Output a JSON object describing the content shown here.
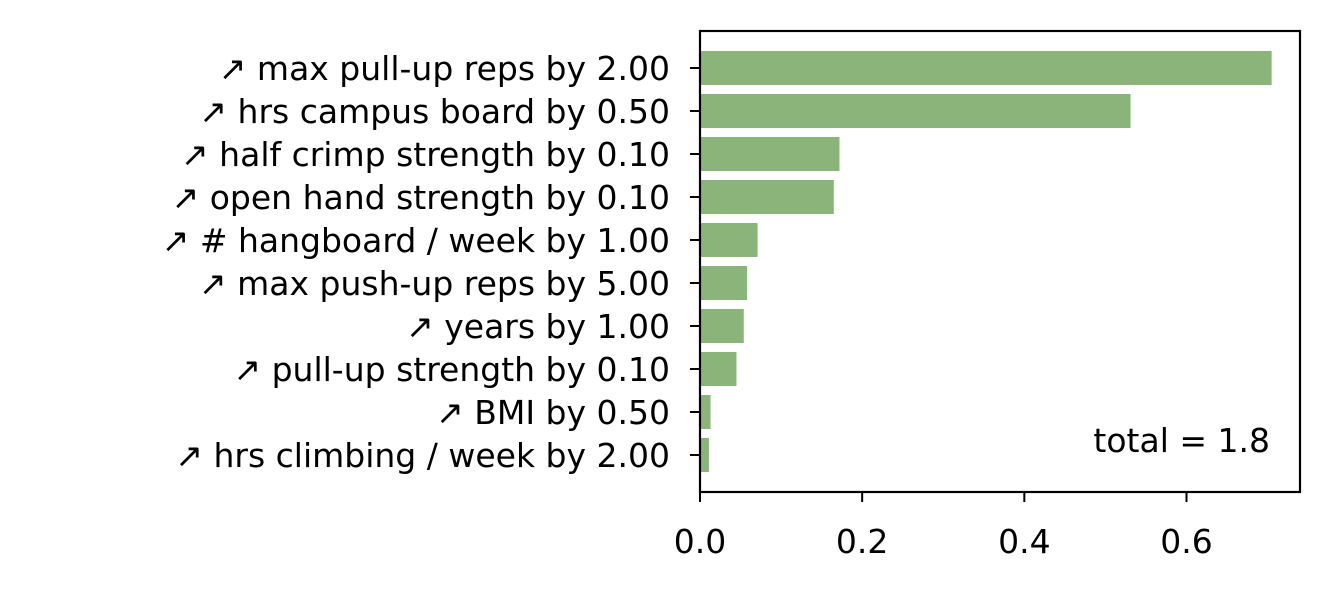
{
  "chart_data": {
    "type": "bar",
    "orientation": "horizontal",
    "categories": [
      "↗ max pull-up reps by 2.00",
      "↗ hrs campus board by 0.50",
      "↗ half crimp strength by 0.10",
      "↗ open hand strength by 0.10",
      "↗ # hangboard / week by 1.00",
      "↗ max push-up reps by 5.00",
      "↗ years by 1.00",
      "↗ pull-up strength by 0.10",
      "↗ BMI by 0.50",
      "↗ hrs climbing / week by 2.00"
    ],
    "values": [
      0.705,
      0.531,
      0.172,
      0.165,
      0.071,
      0.058,
      0.054,
      0.045,
      0.013,
      0.011
    ],
    "xlim": [
      0,
      0.74
    ],
    "xticks": [
      0.0,
      0.2,
      0.4,
      0.6
    ],
    "xtick_labels": [
      "0.0",
      "0.2",
      "0.4",
      "0.6"
    ],
    "annotation": "total = 1.8",
    "grid": false,
    "bar_color": "#8ab47a"
  }
}
